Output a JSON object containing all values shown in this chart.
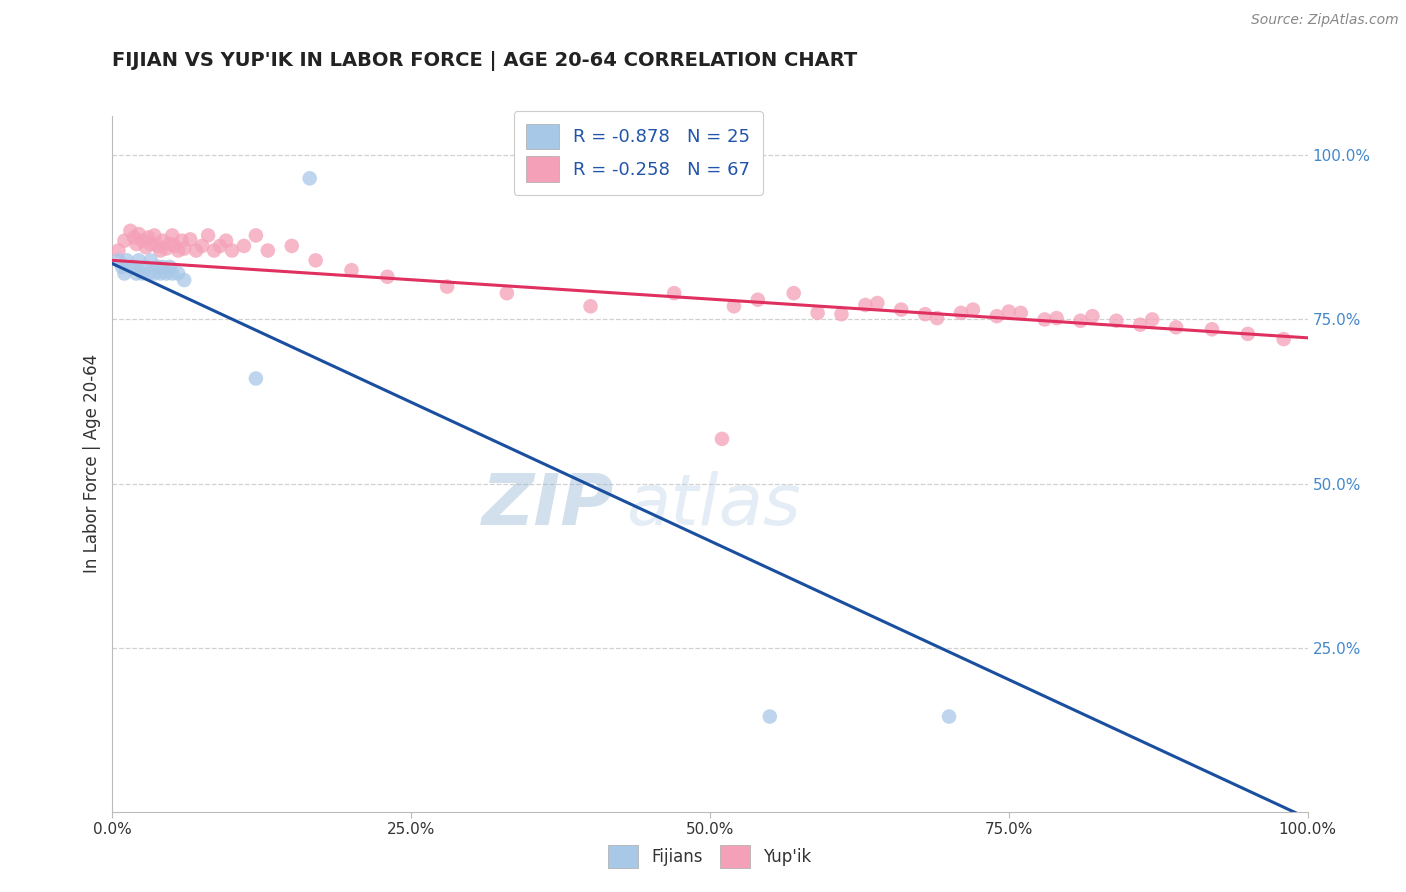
{
  "title": "FIJIAN VS YUP'IK IN LABOR FORCE | AGE 20-64 CORRELATION CHART",
  "source_text": "Source: ZipAtlas.com",
  "ylabel": "In Labor Force | Age 20-64",
  "xlim": [
    0.0,
    1.0
  ],
  "ylim": [
    0.0,
    1.06
  ],
  "xtick_vals": [
    0.0,
    0.25,
    0.5,
    0.75,
    1.0
  ],
  "xtick_labels": [
    "0.0%",
    "25.0%",
    "50.0%",
    "75.0%",
    "100.0%"
  ],
  "ytick_right_vals": [
    0.25,
    0.5,
    0.75,
    1.0
  ],
  "ytick_right_labels": [
    "25.0%",
    "50.0%",
    "75.0%",
    "100.0%"
  ],
  "legend_r1": "R = -0.878",
  "legend_n1": "N = 25",
  "legend_r2": "R = -0.258",
  "legend_n2": "N = 67",
  "legend_label1": "Fijians",
  "legend_label2": "Yup'ik",
  "fijian_color": "#a8c8e8",
  "yupik_color": "#f4a0b8",
  "fijian_line_color": "#1a4fa0",
  "yupik_line_color": "#e03060",
  "watermark_zip": "ZIP",
  "watermark_atlas": "atlas",
  "background_color": "#ffffff",
  "fijian_x": [
    0.005,
    0.008,
    0.01,
    0.012,
    0.015,
    0.018,
    0.02,
    0.022,
    0.025,
    0.028,
    0.03,
    0.032,
    0.035,
    0.038,
    0.04,
    0.042,
    0.045,
    0.048,
    0.05,
    0.055,
    0.06,
    0.12,
    0.55,
    0.7,
    0.165
  ],
  "fijian_y": [
    0.84,
    0.83,
    0.82,
    0.84,
    0.83,
    0.83,
    0.82,
    0.84,
    0.82,
    0.83,
    0.82,
    0.84,
    0.82,
    0.83,
    0.82,
    0.83,
    0.82,
    0.83,
    0.82,
    0.82,
    0.81,
    0.66,
    0.145,
    0.145,
    0.965
  ],
  "yupik_x": [
    0.005,
    0.01,
    0.015,
    0.018,
    0.02,
    0.022,
    0.025,
    0.028,
    0.03,
    0.032,
    0.035,
    0.038,
    0.04,
    0.042,
    0.045,
    0.048,
    0.05,
    0.052,
    0.055,
    0.058,
    0.06,
    0.065,
    0.07,
    0.075,
    0.08,
    0.085,
    0.09,
    0.095,
    0.1,
    0.11,
    0.12,
    0.13,
    0.15,
    0.17,
    0.2,
    0.23,
    0.28,
    0.33,
    0.4,
    0.47,
    0.51,
    0.52,
    0.54,
    0.57,
    0.59,
    0.61,
    0.63,
    0.64,
    0.66,
    0.68,
    0.69,
    0.71,
    0.72,
    0.74,
    0.75,
    0.76,
    0.78,
    0.79,
    0.81,
    0.82,
    0.84,
    0.86,
    0.87,
    0.89,
    0.92,
    0.95,
    0.98
  ],
  "yupik_y": [
    0.855,
    0.87,
    0.885,
    0.875,
    0.865,
    0.88,
    0.87,
    0.86,
    0.875,
    0.865,
    0.878,
    0.862,
    0.855,
    0.87,
    0.858,
    0.865,
    0.878,
    0.862,
    0.855,
    0.87,
    0.858,
    0.872,
    0.855,
    0.862,
    0.878,
    0.855,
    0.862,
    0.87,
    0.855,
    0.862,
    0.878,
    0.855,
    0.862,
    0.84,
    0.825,
    0.815,
    0.8,
    0.79,
    0.77,
    0.79,
    0.568,
    0.77,
    0.78,
    0.79,
    0.76,
    0.758,
    0.772,
    0.775,
    0.765,
    0.758,
    0.752,
    0.76,
    0.765,
    0.755,
    0.762,
    0.76,
    0.75,
    0.752,
    0.748,
    0.755,
    0.748,
    0.742,
    0.75,
    0.738,
    0.735,
    0.728,
    0.72
  ]
}
